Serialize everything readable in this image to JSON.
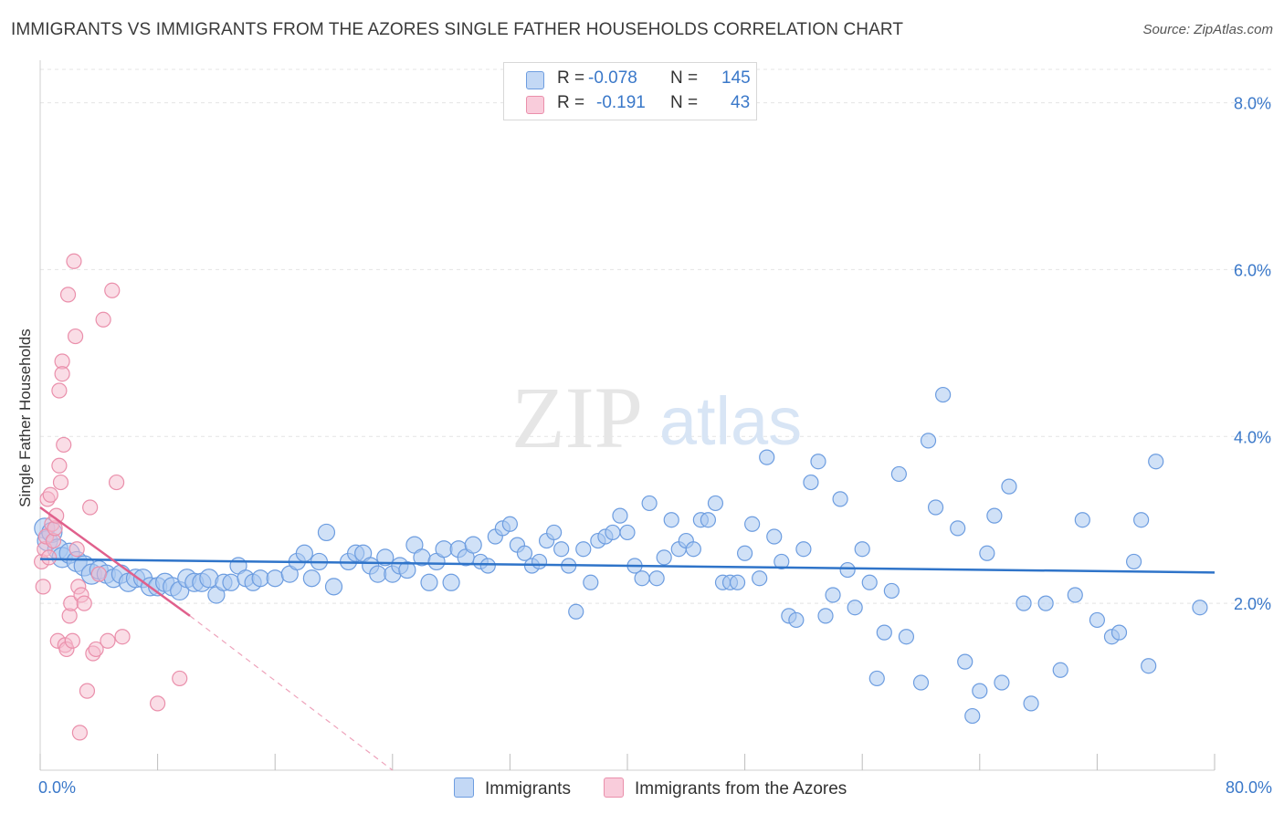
{
  "title": "IMMIGRANTS VS IMMIGRANTS FROM THE AZORES SINGLE FATHER HOUSEHOLDS CORRELATION CHART",
  "source": "Source: ZipAtlas.com",
  "watermark": {
    "zip": "ZIP",
    "atlas": "atlas"
  },
  "legend": {
    "r_label": "R =",
    "n_label": "N =",
    "rows": [
      {
        "r": "-0.078",
        "n": "145"
      },
      {
        "r": "-0.191",
        "n": "43"
      }
    ]
  },
  "bottom_legend": {
    "series1": "Immigrants",
    "series2": "Immigrants from the Azores"
  },
  "colors": {
    "blue_fill": "#a9c8f0",
    "blue_stroke": "#6d9de0",
    "blue_line": "#2f74c9",
    "pink_fill": "#f6bccd",
    "pink_stroke": "#ea8fab",
    "pink_line": "#e0608c",
    "tick_text": "#3a78c9"
  },
  "chart_data": {
    "type": "scatter",
    "title": "IMMIGRANTS VS IMMIGRANTS FROM THE AZORES SINGLE FATHER HOUSEHOLDS CORRELATION CHART",
    "xlabel": "",
    "ylabel": "Single Father Households",
    "xlim": [
      0,
      80
    ],
    "ylim": [
      0,
      8.4
    ],
    "x_tick_labels": [
      "0.0%",
      "80.0%"
    ],
    "y_ticks": [
      2,
      4,
      6,
      8
    ],
    "y_tick_labels": [
      "2.0%",
      "4.0%",
      "6.0%",
      "8.0%"
    ],
    "grid": true,
    "legend_position": "top-center",
    "series": [
      {
        "name": "Immigrants",
        "r": -0.078,
        "n": 145,
        "trend": {
          "x0": 0,
          "y0": 2.53,
          "x1": 80,
          "y1": 2.37
        },
        "points": [
          [
            0.3,
            2.9
          ],
          [
            0.5,
            2.75
          ],
          [
            0.8,
            2.85
          ],
          [
            1.2,
            2.65
          ],
          [
            1.5,
            2.55
          ],
          [
            2,
            2.6
          ],
          [
            2.5,
            2.5
          ],
          [
            3,
            2.45
          ],
          [
            3.5,
            2.35
          ],
          [
            4,
            2.4
          ],
          [
            4.5,
            2.35
          ],
          [
            5,
            2.3
          ],
          [
            5.5,
            2.35
          ],
          [
            6,
            2.25
          ],
          [
            6.5,
            2.3
          ],
          [
            7,
            2.3
          ],
          [
            7.5,
            2.2
          ],
          [
            8,
            2.2
          ],
          [
            8.5,
            2.25
          ],
          [
            9,
            2.2
          ],
          [
            9.5,
            2.15
          ],
          [
            10,
            2.3
          ],
          [
            10.5,
            2.25
          ],
          [
            11,
            2.25
          ],
          [
            11.5,
            2.3
          ],
          [
            12,
            2.1
          ],
          [
            12.5,
            2.25
          ],
          [
            13,
            2.25
          ],
          [
            13.5,
            2.45
          ],
          [
            14,
            2.3
          ],
          [
            14.5,
            2.25
          ],
          [
            15,
            2.3
          ],
          [
            16,
            2.3
          ],
          [
            17,
            2.35
          ],
          [
            17.5,
            2.5
          ],
          [
            18,
            2.6
          ],
          [
            18.5,
            2.3
          ],
          [
            19,
            2.5
          ],
          [
            19.5,
            2.85
          ],
          [
            20,
            2.2
          ],
          [
            21,
            2.5
          ],
          [
            21.5,
            2.6
          ],
          [
            22,
            2.6
          ],
          [
            22.5,
            2.45
          ],
          [
            23,
            2.35
          ],
          [
            23.5,
            2.55
          ],
          [
            24,
            2.35
          ],
          [
            24.5,
            2.45
          ],
          [
            25,
            2.4
          ],
          [
            25.5,
            2.7
          ],
          [
            26,
            2.55
          ],
          [
            26.5,
            2.25
          ],
          [
            27,
            2.5
          ],
          [
            27.5,
            2.65
          ],
          [
            28,
            2.25
          ],
          [
            28.5,
            2.65
          ],
          [
            29,
            2.55
          ],
          [
            29.5,
            2.7
          ],
          [
            30,
            2.5
          ],
          [
            30.5,
            2.45
          ],
          [
            31,
            2.8
          ],
          [
            31.5,
            2.9
          ],
          [
            32,
            2.95
          ],
          [
            32.5,
            2.7
          ],
          [
            33,
            2.6
          ],
          [
            33.5,
            2.45
          ],
          [
            34,
            2.5
          ],
          [
            34.5,
            2.75
          ],
          [
            35,
            2.85
          ],
          [
            35.5,
            2.65
          ],
          [
            36,
            2.45
          ],
          [
            36.5,
            1.9
          ],
          [
            37,
            2.65
          ],
          [
            37.5,
            2.25
          ],
          [
            38,
            2.75
          ],
          [
            38.5,
            2.8
          ],
          [
            39,
            2.85
          ],
          [
            39.5,
            3.05
          ],
          [
            40,
            2.85
          ],
          [
            40.5,
            2.45
          ],
          [
            41,
            2.3
          ],
          [
            41.5,
            3.2
          ],
          [
            42,
            2.3
          ],
          [
            42.5,
            2.55
          ],
          [
            43,
            3.0
          ],
          [
            43.5,
            2.65
          ],
          [
            44,
            2.75
          ],
          [
            44.5,
            2.65
          ],
          [
            45,
            3.0
          ],
          [
            45.5,
            3.0
          ],
          [
            46,
            3.2
          ],
          [
            46.5,
            2.25
          ],
          [
            47,
            2.25
          ],
          [
            47.5,
            2.25
          ],
          [
            48,
            2.6
          ],
          [
            48.5,
            2.95
          ],
          [
            49,
            2.3
          ],
          [
            49.5,
            3.75
          ],
          [
            50,
            2.8
          ],
          [
            50.5,
            2.5
          ],
          [
            51,
            1.85
          ],
          [
            51.5,
            1.8
          ],
          [
            52,
            2.65
          ],
          [
            52.5,
            3.45
          ],
          [
            53,
            3.7
          ],
          [
            53.5,
            1.85
          ],
          [
            54,
            2.1
          ],
          [
            54.5,
            3.25
          ],
          [
            55,
            2.4
          ],
          [
            55.5,
            1.95
          ],
          [
            56,
            2.65
          ],
          [
            56.5,
            2.25
          ],
          [
            57,
            1.1
          ],
          [
            57.5,
            1.65
          ],
          [
            58,
            2.15
          ],
          [
            58.5,
            3.55
          ],
          [
            59,
            1.6
          ],
          [
            60,
            1.05
          ],
          [
            60.5,
            3.95
          ],
          [
            61,
            3.15
          ],
          [
            61.5,
            4.5
          ],
          [
            62.5,
            2.9
          ],
          [
            63,
            1.3
          ],
          [
            63.5,
            0.65
          ],
          [
            64,
            0.95
          ],
          [
            64.5,
            2.6
          ],
          [
            65,
            3.05
          ],
          [
            65.5,
            1.05
          ],
          [
            66,
            3.4
          ],
          [
            67,
            2.0
          ],
          [
            67.5,
            0.8
          ],
          [
            68.5,
            2.0
          ],
          [
            69.5,
            1.2
          ],
          [
            70.5,
            2.1
          ],
          [
            71,
            3.0
          ],
          [
            72,
            1.8
          ],
          [
            73,
            1.6
          ],
          [
            73.5,
            1.65
          ],
          [
            74.5,
            2.5
          ],
          [
            75,
            3.0
          ],
          [
            75.5,
            1.25
          ],
          [
            76,
            3.7
          ],
          [
            79,
            1.95
          ]
        ]
      },
      {
        "name": "Immigrants from the Azores",
        "r": -0.191,
        "n": 43,
        "trend": {
          "x0": 0,
          "y0": 3.15,
          "x1": 10.2,
          "y1": 1.85
        },
        "trend_dashed": {
          "x0": 10.2,
          "y0": 1.85,
          "x1": 24,
          "y1": 0
        },
        "points": [
          [
            0.1,
            2.5
          ],
          [
            0.2,
            2.2
          ],
          [
            0.3,
            2.65
          ],
          [
            0.4,
            2.8
          ],
          [
            0.5,
            3.25
          ],
          [
            0.6,
            2.55
          ],
          [
            0.7,
            3.3
          ],
          [
            0.8,
            2.95
          ],
          [
            0.9,
            2.75
          ],
          [
            1.0,
            2.9
          ],
          [
            1.1,
            3.05
          ],
          [
            1.2,
            1.55
          ],
          [
            1.3,
            3.65
          ],
          [
            1.4,
            3.45
          ],
          [
            1.5,
            4.9
          ],
          [
            1.6,
            3.9
          ],
          [
            1.7,
            1.5
          ],
          [
            1.8,
            1.45
          ],
          [
            1.9,
            5.7
          ],
          [
            2.0,
            1.85
          ],
          [
            2.1,
            2.0
          ],
          [
            2.2,
            1.55
          ],
          [
            2.3,
            6.1
          ],
          [
            2.4,
            5.2
          ],
          [
            2.5,
            2.65
          ],
          [
            2.6,
            2.2
          ],
          [
            2.7,
            0.45
          ],
          [
            2.8,
            2.1
          ],
          [
            3.0,
            2.0
          ],
          [
            3.2,
            0.95
          ],
          [
            3.4,
            3.15
          ],
          [
            3.6,
            1.4
          ],
          [
            3.8,
            1.45
          ],
          [
            4.0,
            2.35
          ],
          [
            4.3,
            5.4
          ],
          [
            4.6,
            1.55
          ],
          [
            4.9,
            5.75
          ],
          [
            5.2,
            3.45
          ],
          [
            5.6,
            1.6
          ],
          [
            1.5,
            4.75
          ],
          [
            1.3,
            4.55
          ],
          [
            8.0,
            0.8
          ],
          [
            9.5,
            1.1
          ]
        ]
      }
    ]
  }
}
